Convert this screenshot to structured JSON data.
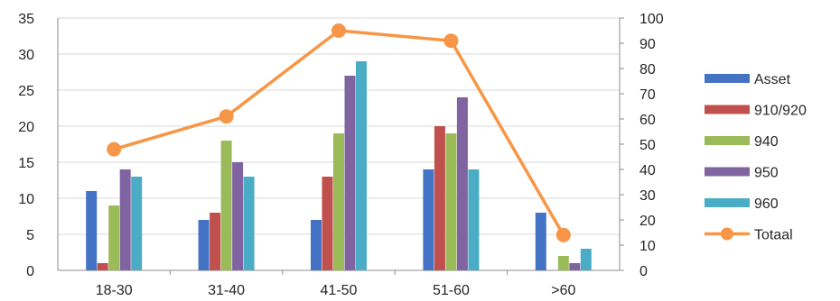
{
  "chart_data": {
    "type": "bar",
    "categories": [
      "18-30",
      "31-40",
      "41-50",
      "51-60",
      ">60"
    ],
    "series": [
      {
        "name": "Asset",
        "type": "bar",
        "axis": "left",
        "color": "#4472C4",
        "values": [
          11,
          7,
          7,
          14,
          8
        ]
      },
      {
        "name": "910/920",
        "type": "bar",
        "axis": "left",
        "color": "#C0504D",
        "values": [
          1,
          8,
          13,
          20,
          0
        ]
      },
      {
        "name": "940",
        "type": "bar",
        "axis": "left",
        "color": "#9BBB59",
        "values": [
          9,
          18,
          19,
          19,
          2
        ]
      },
      {
        "name": "950",
        "type": "bar",
        "axis": "left",
        "color": "#8064A2",
        "values": [
          14,
          15,
          27,
          24,
          1
        ]
      },
      {
        "name": "960",
        "type": "bar",
        "axis": "left",
        "color": "#4BACC6",
        "values": [
          13,
          13,
          29,
          14,
          3
        ]
      },
      {
        "name": "Totaal",
        "type": "line",
        "axis": "right",
        "color": "#F79646",
        "values": [
          48,
          61,
          95,
          91,
          14
        ]
      }
    ],
    "y_left": {
      "min": 0,
      "max": 35,
      "step": 5,
      "ticks": [
        "0",
        "5",
        "10",
        "15",
        "20",
        "25",
        "30",
        "35"
      ]
    },
    "y_right": {
      "min": 0,
      "max": 100,
      "step": 10,
      "ticks": [
        "0",
        "10",
        "20",
        "30",
        "40",
        "50",
        "60",
        "70",
        "80",
        "90",
        "100"
      ]
    },
    "grid": true,
    "legend": "right",
    "title": "",
    "xlabel": "",
    "ylabel": ""
  }
}
